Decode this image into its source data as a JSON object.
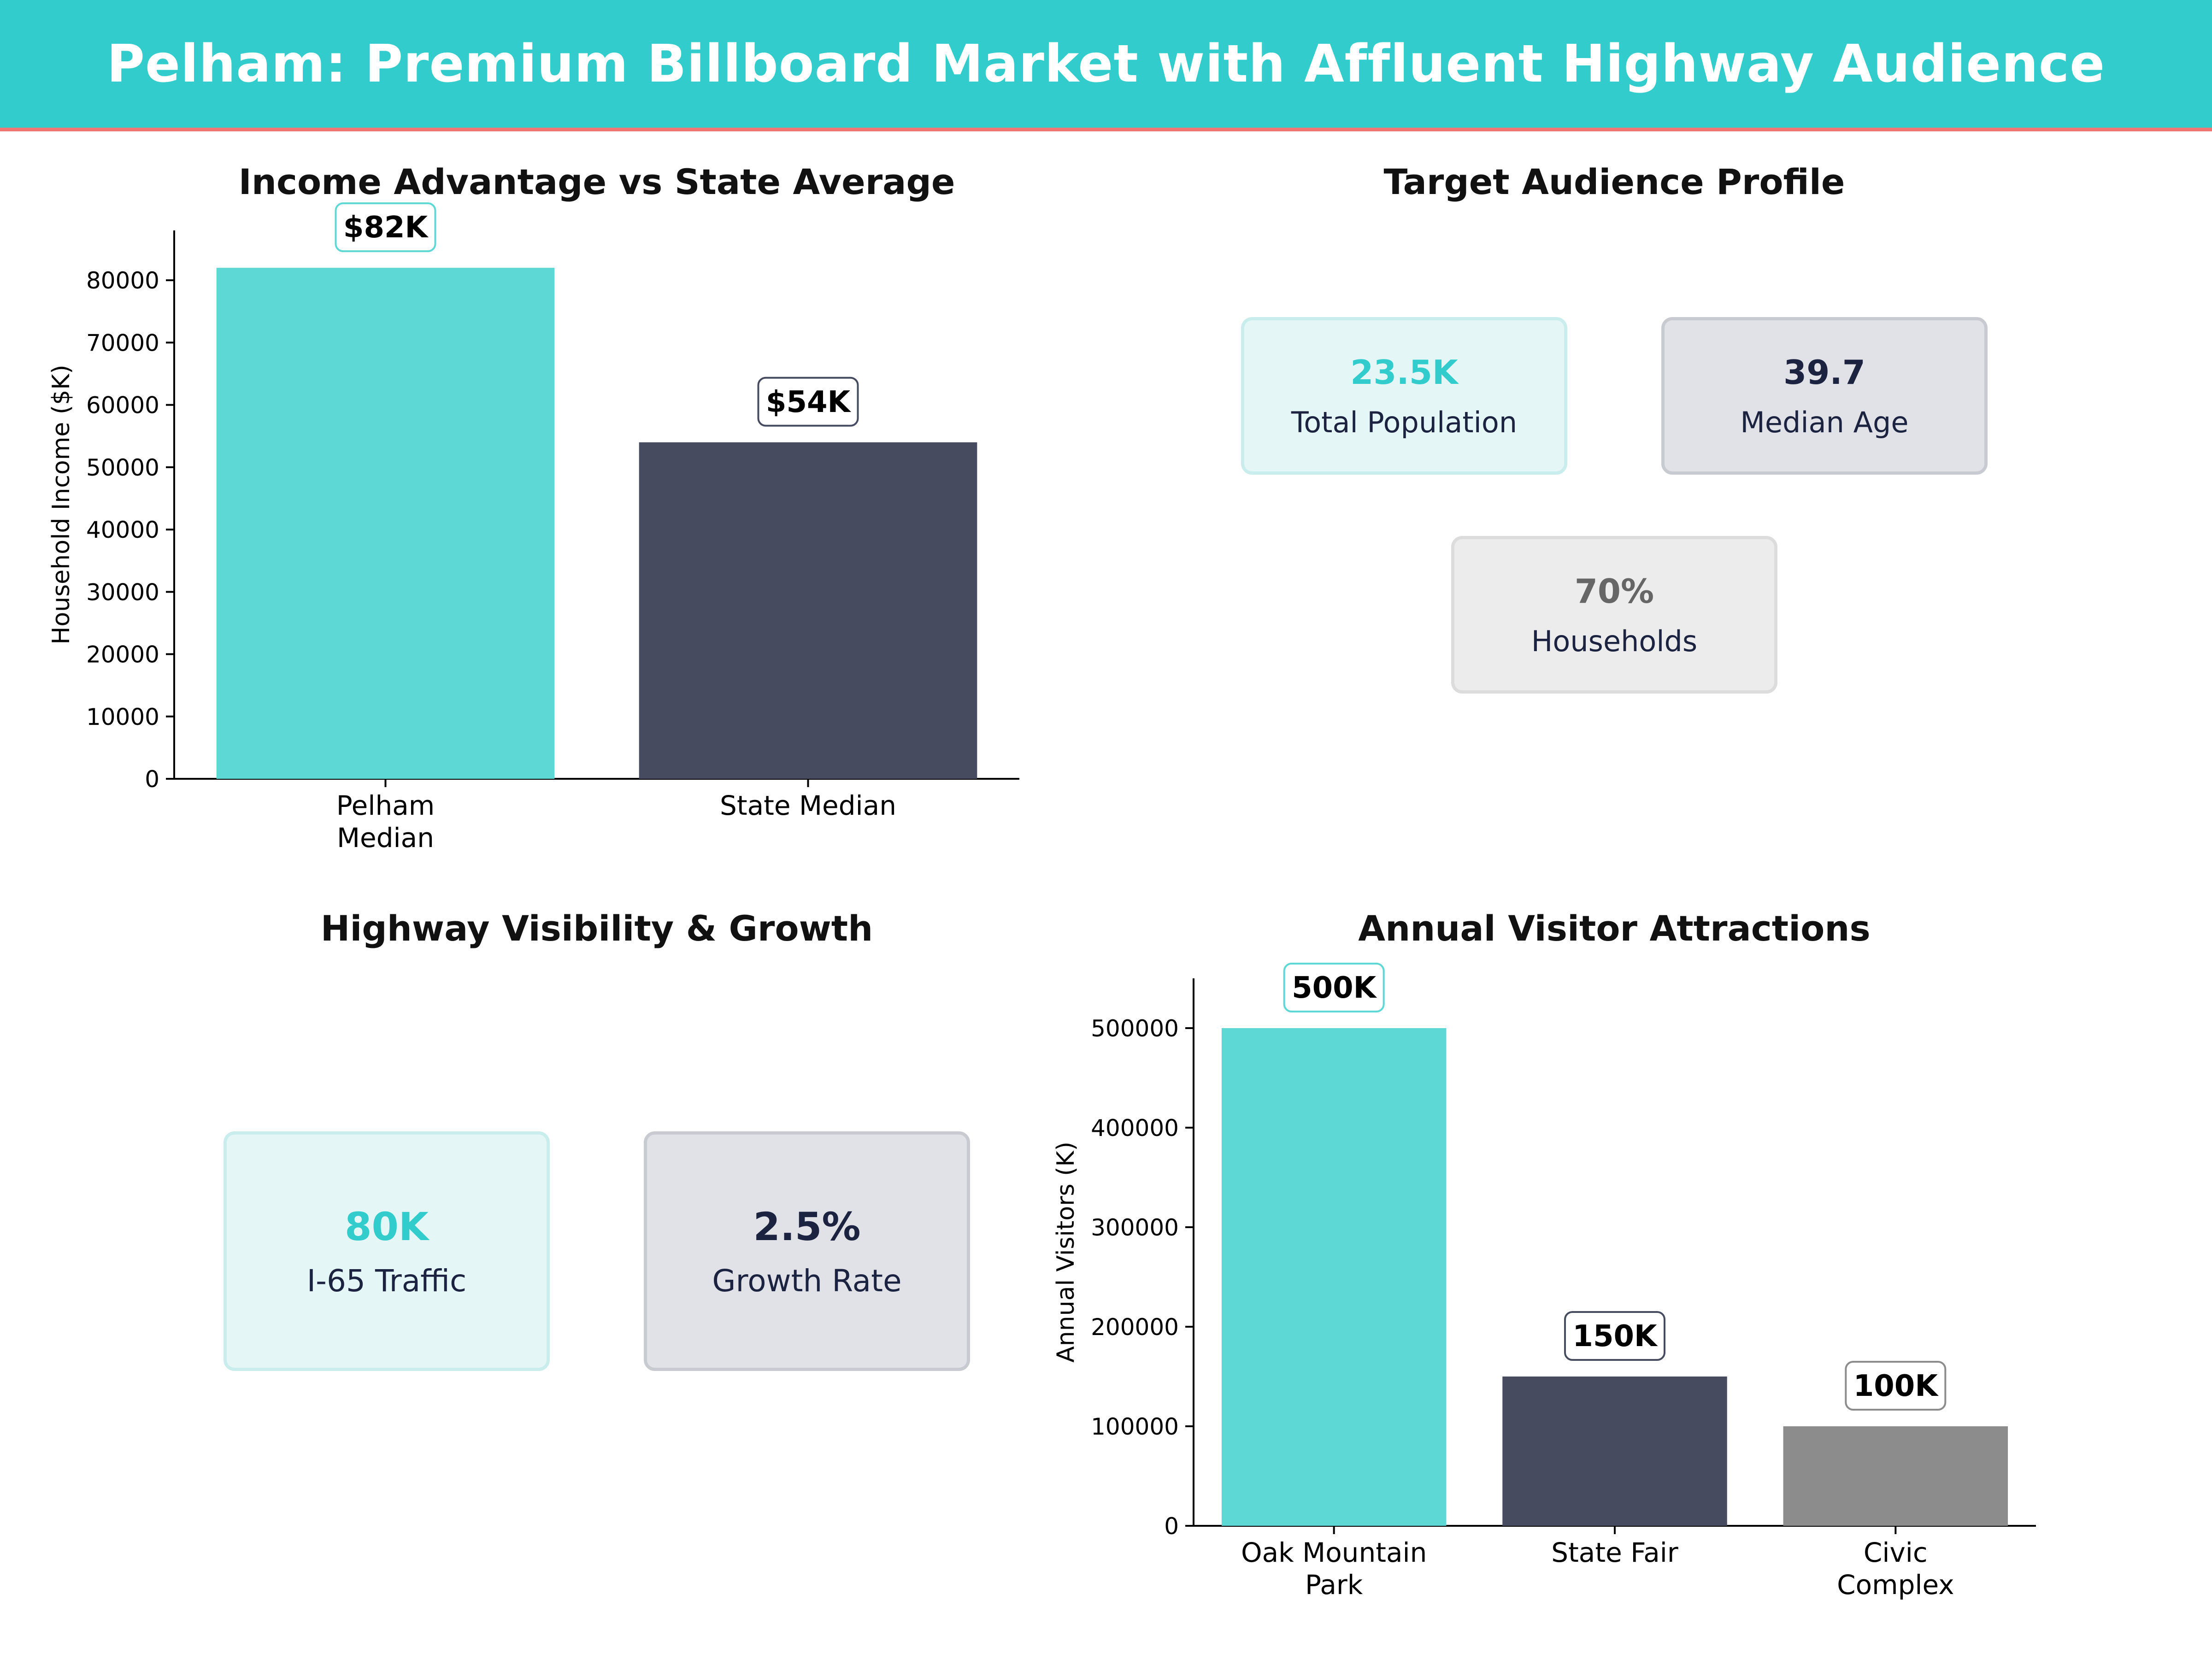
{
  "header": {
    "title": "Pelham: Premium Billboard Market with Affluent Highway Audience"
  },
  "colors": {
    "teal": "#5dd8d5",
    "navy": "#474b60",
    "gray": "#8c8c8c",
    "accent_teal": "#33cccc",
    "dark_text": "#1c2340",
    "gray_text": "#666666"
  },
  "chart_data": [
    {
      "type": "bar",
      "title": "Income Advantage vs State Average",
      "categories": [
        [
          "Pelham",
          "Median"
        ],
        [
          "State Median"
        ]
      ],
      "values": [
        82000,
        54000
      ],
      "value_labels": [
        "$82K",
        "$54K"
      ],
      "xlabel": "",
      "ylabel": "Household Income ($K)",
      "ylim": [
        0,
        88000
      ],
      "yticks": [
        0,
        10000,
        20000,
        30000,
        40000,
        50000,
        60000,
        70000,
        80000
      ],
      "colors": [
        "#5dd8d5",
        "#474b60"
      ],
      "label_borders": [
        "#5dd8d5",
        "#474b60"
      ]
    },
    {
      "type": "bar",
      "title": "Annual Visitor Attractions",
      "categories": [
        [
          "Oak Mountain",
          "Park"
        ],
        [
          "State Fair"
        ],
        [
          "Civic",
          "Complex"
        ]
      ],
      "values": [
        500000,
        150000,
        100000
      ],
      "value_labels": [
        "500K",
        "150K",
        "100K"
      ],
      "xlabel": "",
      "ylabel": "Annual Visitors (K)",
      "ylim": [
        0,
        550000
      ],
      "yticks": [
        0,
        100000,
        200000,
        300000,
        400000,
        500000
      ],
      "colors": [
        "#5dd8d5",
        "#474b60",
        "#8c8c8c"
      ],
      "label_borders": [
        "#5dd8d5",
        "#474b60",
        "#8c8c8c"
      ]
    }
  ],
  "audience": {
    "title": "Target Audience Profile",
    "cards": [
      {
        "value": "23.5K",
        "label": "Total Population"
      },
      {
        "value": "39.7",
        "label": "Median Age"
      },
      {
        "value": "70%",
        "label": "Households"
      }
    ]
  },
  "highway": {
    "title": "Highway Visibility & Growth",
    "cards": [
      {
        "value": "80K",
        "label": "I-65 Traffic"
      },
      {
        "value": "2.5%",
        "label": "Growth Rate"
      }
    ]
  }
}
